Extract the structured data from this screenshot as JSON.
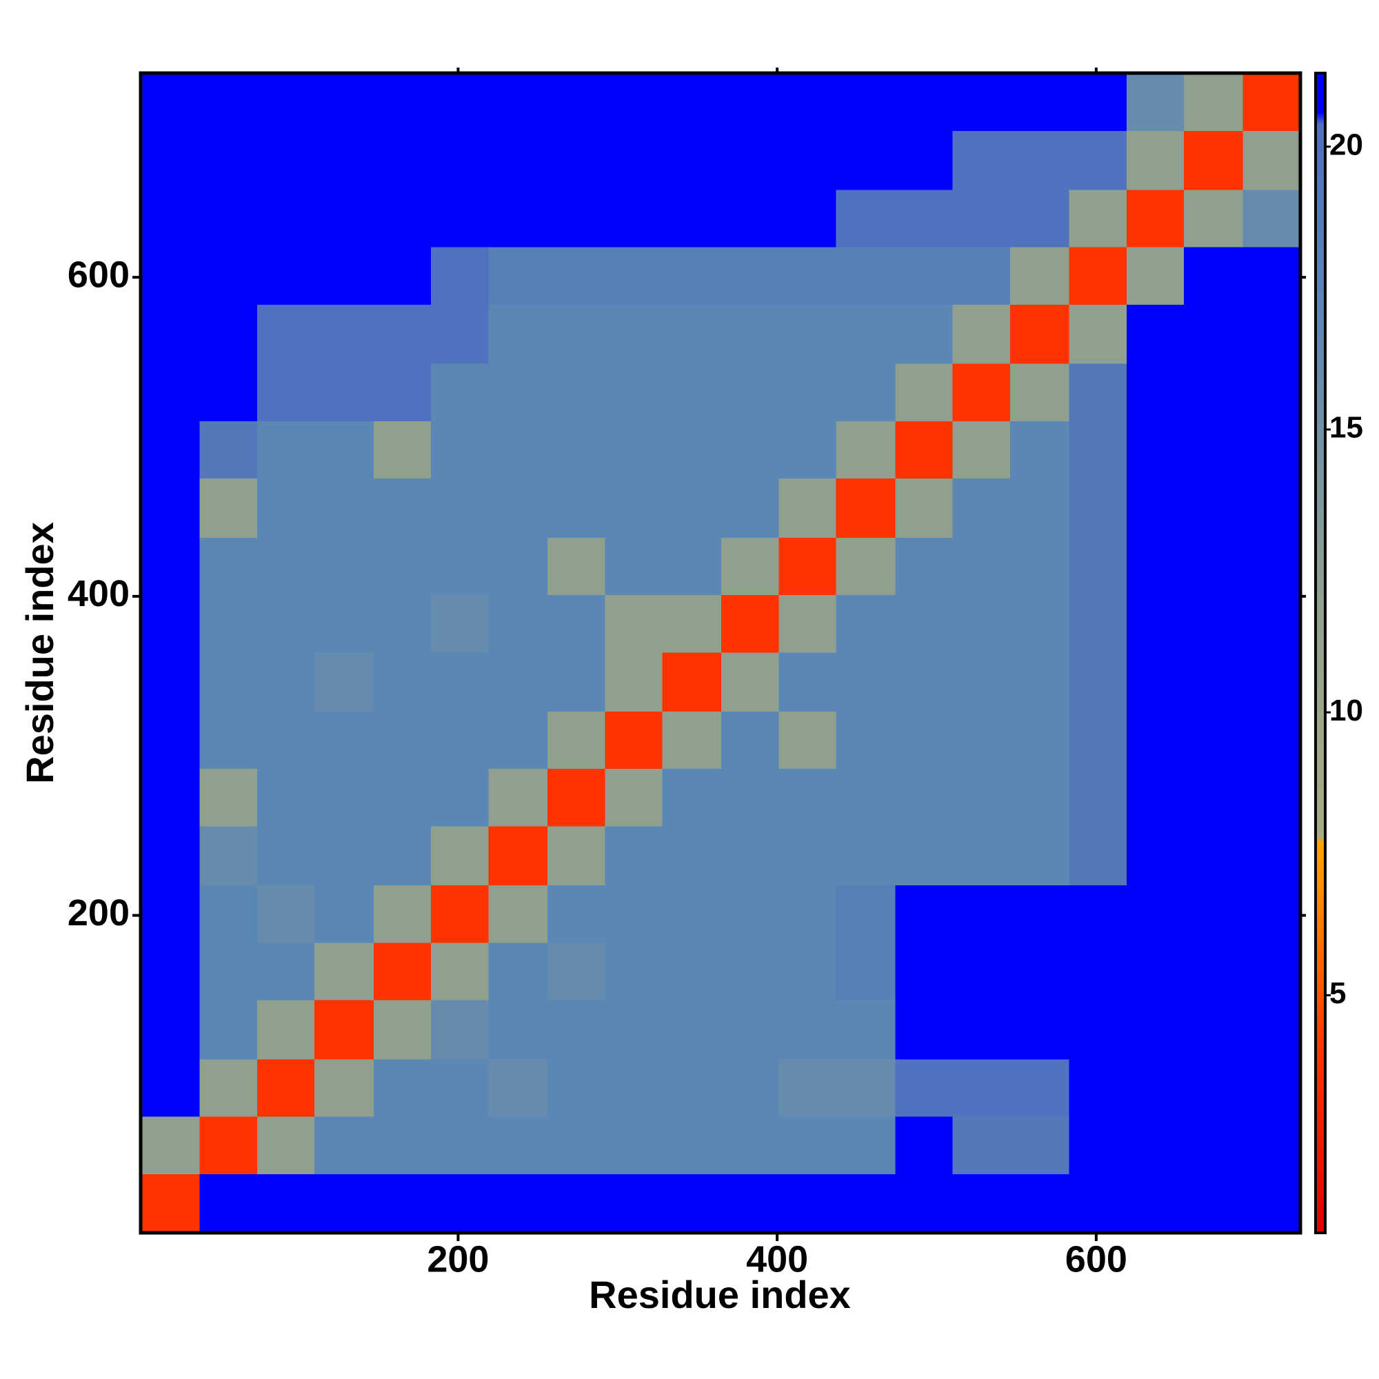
{
  "chart_data": {
    "type": "heatmap",
    "x_label": "Residue index",
    "y_label": "Residue index",
    "xlim": [
      1,
      728
    ],
    "ylim": [
      1,
      728
    ],
    "xticks": [
      200,
      400,
      600
    ],
    "yticks": [
      200,
      400,
      600
    ],
    "x_edges": [
      1,
      38,
      74,
      110,
      147,
      183,
      219,
      256,
      292,
      328,
      365,
      401,
      437,
      474,
      510,
      546,
      583,
      619,
      655,
      692,
      728
    ],
    "y_edges": [
      1,
      38,
      74,
      110,
      147,
      183,
      219,
      256,
      292,
      328,
      365,
      401,
      437,
      474,
      510,
      546,
      583,
      619,
      655,
      692,
      728
    ],
    "z": [
      [
        4,
        21,
        21,
        21,
        21,
        21,
        21,
        21,
        21,
        21,
        21,
        21,
        21,
        21,
        21,
        21,
        21,
        21,
        21,
        21
      ],
      [
        12,
        4,
        12,
        17,
        17,
        17,
        17,
        17,
        17,
        17,
        17,
        17,
        17,
        21,
        19,
        19,
        21,
        21,
        21,
        21
      ],
      [
        21,
        12,
        4,
        12,
        17,
        17,
        16,
        17,
        17,
        17,
        17,
        16,
        16,
        20,
        20,
        20,
        21,
        21,
        21,
        21
      ],
      [
        21,
        17,
        12,
        4,
        12,
        16,
        17,
        17,
        17,
        17,
        17,
        17,
        17,
        21,
        21,
        21,
        21,
        21,
        21,
        21
      ],
      [
        21,
        17,
        17,
        12,
        4,
        12,
        17,
        16,
        17,
        17,
        17,
        17,
        18,
        21,
        21,
        21,
        21,
        21,
        21,
        21
      ],
      [
        21,
        17,
        16,
        17,
        12,
        4,
        12,
        17,
        17,
        17,
        17,
        17,
        18,
        21,
        21,
        21,
        21,
        21,
        21,
        21
      ],
      [
        21,
        16,
        17,
        17,
        17,
        12,
        4,
        12,
        17,
        17,
        17,
        17,
        17,
        17,
        17,
        17,
        19,
        21,
        21,
        21
      ],
      [
        21,
        12,
        17,
        17,
        17,
        17,
        12,
        4,
        12,
        17,
        17,
        17,
        17,
        17,
        17,
        17,
        19,
        21,
        21,
        21
      ],
      [
        21,
        17,
        17,
        17,
        17,
        17,
        17,
        12,
        4,
        12,
        17,
        12,
        17,
        17,
        17,
        17,
        19,
        21,
        21,
        21
      ],
      [
        21,
        17,
        17,
        16,
        17,
        17,
        17,
        17,
        12,
        4,
        12,
        17,
        17,
        17,
        17,
        17,
        19,
        21,
        21,
        21
      ],
      [
        21,
        17,
        17,
        17,
        17,
        16,
        17,
        17,
        12,
        12,
        4,
        12,
        17,
        17,
        17,
        17,
        19,
        21,
        21,
        21
      ],
      [
        21,
        17,
        17,
        17,
        17,
        17,
        17,
        12,
        17,
        17,
        12,
        4,
        12,
        17,
        17,
        17,
        19,
        21,
        21,
        21
      ],
      [
        21,
        12,
        17,
        17,
        17,
        17,
        17,
        17,
        17,
        17,
        17,
        12,
        4,
        12,
        17,
        17,
        19,
        21,
        21,
        21
      ],
      [
        21,
        19,
        17,
        17,
        12,
        17,
        17,
        17,
        17,
        17,
        17,
        17,
        12,
        4,
        12,
        17,
        19,
        21,
        21,
        21
      ],
      [
        21,
        21,
        20,
        20,
        20,
        17,
        17,
        17,
        17,
        17,
        17,
        17,
        17,
        12,
        4,
        12,
        19,
        21,
        21,
        21
      ],
      [
        21,
        21,
        20,
        20,
        20,
        20,
        17,
        17,
        17,
        17,
        17,
        17,
        17,
        17,
        12,
        4,
        12,
        21,
        21,
        21
      ],
      [
        21,
        21,
        21,
        21,
        21,
        20,
        18,
        18,
        18,
        18,
        18,
        18,
        18,
        18,
        18,
        12,
        4,
        12,
        21,
        21
      ],
      [
        21,
        21,
        21,
        21,
        21,
        21,
        21,
        21,
        21,
        21,
        21,
        21,
        20,
        20,
        20,
        20,
        12,
        4,
        12,
        16
      ],
      [
        21,
        21,
        21,
        21,
        21,
        21,
        21,
        21,
        21,
        21,
        21,
        21,
        21,
        21,
        20,
        20,
        20,
        12,
        4,
        12
      ],
      [
        21,
        21,
        21,
        21,
        21,
        21,
        21,
        21,
        21,
        21,
        21,
        21,
        21,
        21,
        21,
        21,
        21,
        16,
        12,
        4
      ]
    ],
    "clim": [
      0.8,
      21.3
    ],
    "colorbar_ticks": [
      5,
      10,
      15,
      20
    ],
    "colorscale": [
      [
        0.8,
        "#e00000"
      ],
      [
        4,
        "#ff3300"
      ],
      [
        7.7,
        "#ffa500"
      ],
      [
        7.8,
        "#a8ab80"
      ],
      [
        12,
        "#8fa08f"
      ],
      [
        17,
        "#5b87b5"
      ],
      [
        20.4,
        "#4d70c0"
      ],
      [
        20.6,
        "#0000ff"
      ],
      [
        21.3,
        "#0000ff"
      ]
    ]
  }
}
